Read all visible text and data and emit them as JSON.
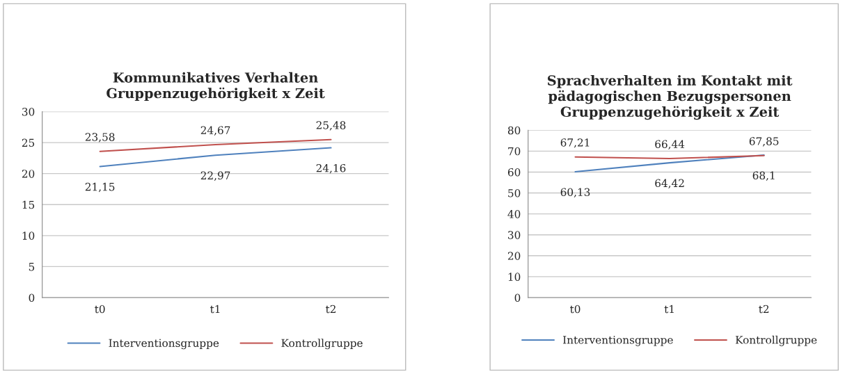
{
  "chart_data": [
    {
      "type": "line",
      "title": "Kommunikatives Verhalten\nGruppenzugehörigkeit x Zeit",
      "categories": [
        "t0",
        "t1",
        "t2"
      ],
      "series": [
        {
          "name": "Interventionsgruppe",
          "color": "#4f81bd",
          "values": [
            21.15,
            22.97,
            24.16
          ],
          "value_labels": [
            "21,15",
            "22,97",
            "24,16"
          ]
        },
        {
          "name": "Kontrollgruppe",
          "color": "#c0504d",
          "values": [
            23.58,
            24.67,
            25.48
          ],
          "value_labels": [
            "23,58",
            "24,67",
            "25,48"
          ]
        }
      ],
      "ylim": [
        0,
        30
      ],
      "yticks": [
        0,
        5,
        10,
        15,
        20,
        25,
        30
      ],
      "grid": "y",
      "legend": "bottom"
    },
    {
      "type": "line",
      "title": "Sprachverhalten im Kontakt mit\npädagogischen Bezugspersonen\nGruppenzugehörigkeit x Zeit",
      "categories": [
        "t0",
        "t1",
        "t2"
      ],
      "series": [
        {
          "name": "Interventionsgruppe",
          "color": "#4f81bd",
          "values": [
            60.13,
            64.42,
            68.1
          ],
          "value_labels": [
            "60,13",
            "64,42",
            "68,1"
          ]
        },
        {
          "name": "Kontrollgruppe",
          "color": "#c0504d",
          "values": [
            67.21,
            66.44,
            67.85
          ],
          "value_labels": [
            "67,21",
            "66,44",
            "67,85"
          ]
        }
      ],
      "ylim": [
        0,
        80
      ],
      "yticks": [
        0,
        10,
        20,
        30,
        40,
        50,
        60,
        70,
        80
      ],
      "grid": "y",
      "legend": "bottom"
    }
  ]
}
